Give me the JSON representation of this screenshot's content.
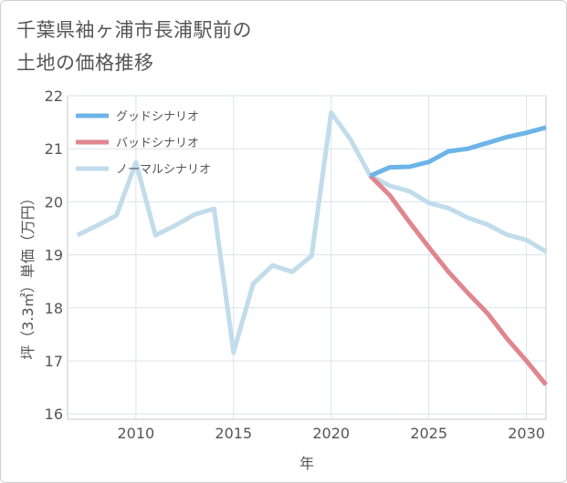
{
  "chart_data": {
    "type": "line",
    "title": "千葉県袖ヶ浦市長浦駅前の\n土地の価格推移",
    "xlabel": "年",
    "ylabel": "坪（3.3㎡）単価（万円）",
    "xlim": [
      2006.5,
      2031
    ],
    "ylim": [
      15.9,
      22
    ],
    "x_ticks": [
      2010,
      2015,
      2020,
      2025,
      2030
    ],
    "y_ticks": [
      16,
      17,
      18,
      19,
      20,
      21,
      22
    ],
    "grid": true,
    "legend_position": "top-left",
    "series": [
      {
        "name": "グッドシナリオ",
        "color": "#6cb4e8",
        "x": [
          2022,
          2023,
          2024,
          2025,
          2026,
          2027,
          2028,
          2029,
          2030,
          2031
        ],
        "values": [
          20.49,
          20.65,
          20.66,
          20.75,
          20.95,
          21.0,
          21.11,
          21.22,
          21.3,
          21.4
        ]
      },
      {
        "name": "バッドシナリオ",
        "color": "#e0868e",
        "x": [
          2022,
          2023,
          2024,
          2025,
          2026,
          2027,
          2028,
          2029,
          2030,
          2031
        ],
        "values": [
          20.49,
          20.12,
          19.62,
          19.14,
          18.68,
          18.28,
          17.9,
          17.42,
          17.0,
          16.55
        ]
      },
      {
        "name": "ノーマルシナリオ",
        "color": "#c1dcea",
        "x": [
          2007,
          2008,
          2009,
          2010,
          2011,
          2012,
          2013,
          2014,
          2015,
          2016,
          2017,
          2018,
          2019,
          2020,
          2021,
          2022,
          2023,
          2024,
          2025,
          2026,
          2027,
          2028,
          2029,
          2030,
          2031
        ],
        "values": [
          19.37,
          19.55,
          19.74,
          20.74,
          19.37,
          19.55,
          19.76,
          19.87,
          17.16,
          18.45,
          18.8,
          18.68,
          18.98,
          21.68,
          21.17,
          20.49,
          20.3,
          20.2,
          19.98,
          19.88,
          19.7,
          19.57,
          19.38,
          19.28,
          19.06
        ]
      }
    ]
  }
}
